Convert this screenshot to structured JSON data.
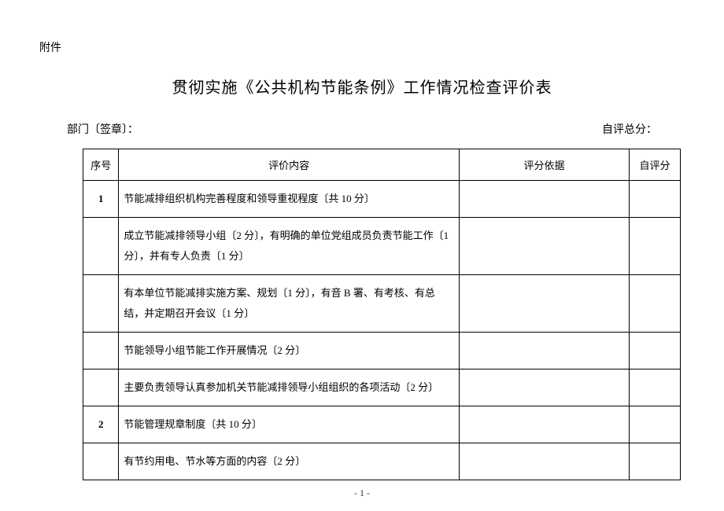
{
  "attachment_label": "附件",
  "title": "贯彻实施《公共机构节能条例》工作情况检查评价表",
  "dept_label": "部门〔签章〕：",
  "total_label": "自评总分：",
  "headers": {
    "seq": "序号",
    "content": "评价内容",
    "basis": "评分依据",
    "score": "自评分"
  },
  "rows": [
    {
      "seq": "1",
      "content": "节能减排组织机构完善程度和领导重视程度〔共 10 分〕",
      "basis": "",
      "score": ""
    },
    {
      "seq": "",
      "content": "成立节能减排领导小组〔2 分〕，有明确的单位党组成员负责节能工作〔1 分〕，并有专人负责〔1 分〕",
      "basis": "",
      "score": ""
    },
    {
      "seq": "",
      "content": "有本单位节能减排实施方案、规划〔1 分〕，有音 B 署、有考核、有总结，并定期召开会议〔1 分〕",
      "basis": "",
      "score": ""
    },
    {
      "seq": "",
      "content": "节能领导小组节能工作开展情况〔2 分〕",
      "basis": "",
      "score": ""
    },
    {
      "seq": "",
      "content": "主要负责领导认真参加机关节能减排领导小组组织的各项活动〔2 分〕",
      "basis": "",
      "score": ""
    },
    {
      "seq": "2",
      "content": "节能管理规章制度〔共 10 分〕",
      "basis": "",
      "score": ""
    },
    {
      "seq": "",
      "content": "有节约用电、节水等方面的内容〔2 分〕",
      "basis": "",
      "score": ""
    }
  ],
  "page_num": "- 1 -"
}
